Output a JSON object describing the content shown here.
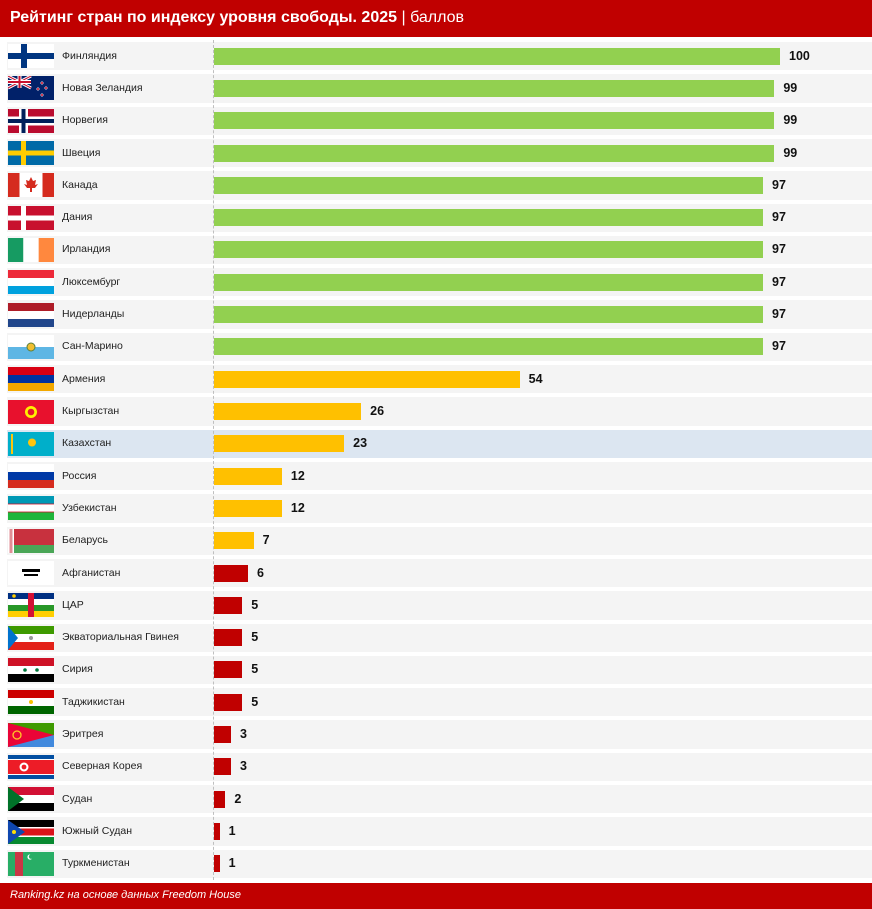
{
  "title": "Рейтинг стран по индексу уровня свободы. 2025",
  "title_unit": "| баллов",
  "source": "Ranking.kz на основе данных Freedom House",
  "colors": {
    "high": "#92d050",
    "mid": "#ffc000",
    "low": "#c00000",
    "highlight_row": "#dce6f1",
    "header": "#c00000"
  },
  "chart_data": {
    "type": "bar",
    "orientation": "horizontal",
    "title": "Рейтинг стран по индексу уровня свободы. 2025",
    "xlim": [
      0,
      100
    ],
    "categories": [
      "Финляндия",
      "Новая Зеландия",
      "Норвегия",
      "Швеция",
      "Канада",
      "Дания",
      "Ирландия",
      "Люксембург",
      "Нидерланды",
      "Сан-Марино",
      "Армения",
      "Кыргызстан",
      "Казахстан",
      "Россия",
      "Узбекистан",
      "Беларусь",
      "Афганистан",
      "ЦАР",
      "Экваториальная Гвинея",
      "Сирия",
      "Таджикистан",
      "Эритрея",
      "Северная Корея",
      "Судан",
      "Южный Судан",
      "Туркменистан"
    ],
    "values": [
      100,
      99,
      99,
      99,
      97,
      97,
      97,
      97,
      97,
      97,
      54,
      26,
      23,
      12,
      12,
      7,
      6,
      5,
      5,
      5,
      5,
      3,
      3,
      2,
      1,
      1
    ],
    "flags": [
      "finland",
      "new-zealand",
      "norway",
      "sweden",
      "canada",
      "denmark",
      "ireland",
      "luxembourg",
      "netherlands",
      "san-marino",
      "armenia",
      "kyrgyzstan",
      "kazakhstan",
      "russia",
      "uzbekistan",
      "belarus",
      "afghanistan",
      "car",
      "equatorial-guinea",
      "syria",
      "tajikistan",
      "eritrea",
      "north-korea",
      "sudan",
      "south-sudan",
      "turkmenistan"
    ],
    "highlight": "Казахстан"
  }
}
